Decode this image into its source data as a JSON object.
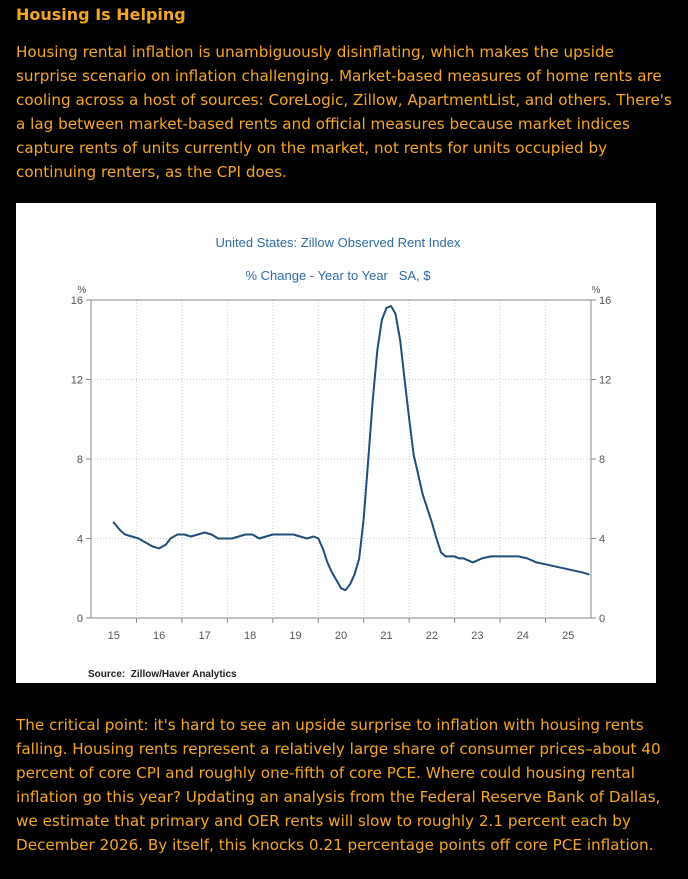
{
  "heading": "Housing Is Helping",
  "paragraph_1": "Housing rental inflation is unambiguously disinflating, which makes the upside surprise scenario on inflation challenging. Market-based measures of home rents are cooling across a host of sources: CoreLogic, Zillow, ApartmentList, and others. There's a lag between market-based rents and official measures because market indices capture rents of units currently on the market, not rents for units occupied by continuing renters, as the CPI does.",
  "paragraph_2": "The critical point: it's hard to see an upside surprise to inflation with housing rents falling. Housing rents represent a relatively large share of consumer prices–about 40 percent of core CPI and roughly one-fifth of core PCE. Where could housing rental inflation go this year? Updating an analysis from the Federal Reserve Bank of Dallas, we estimate that primary and OER rents will slow to roughly 2.1 percent each by December 2026. By itself, this knocks 0.21 percentage points off core PCE inflation.",
  "colors": {
    "text": "#f5a623",
    "line": "#1f4e79",
    "chart_title": "#2e6aa6",
    "axis": "#555555",
    "grid": "#cccccc"
  },
  "chart_data": {
    "type": "line",
    "title": "United States: Zillow Observed Rent Index",
    "subtitle": "% Change - Year to Year   SA, $",
    "ylabel_left": "%",
    "ylabel_right": "%",
    "source": "Source:  Zillow/Haver Analytics",
    "ylim": [
      0,
      16
    ],
    "yticks": [
      0,
      4,
      8,
      12,
      16
    ],
    "xlim": [
      2015.0,
      2026.0
    ],
    "xtick_labels": [
      "15",
      "16",
      "17",
      "18",
      "19",
      "20",
      "21",
      "22",
      "23",
      "24",
      "25"
    ],
    "grid": true,
    "series": [
      {
        "name": "Zillow Observed Rent Index, % YoY",
        "x": [
          2015.5,
          2015.65,
          2015.75,
          2015.9,
          2016.05,
          2016.2,
          2016.35,
          2016.5,
          2016.65,
          2016.75,
          2016.9,
          2017.05,
          2017.2,
          2017.35,
          2017.5,
          2017.65,
          2017.8,
          2017.95,
          2018.1,
          2018.25,
          2018.4,
          2018.55,
          2018.7,
          2018.85,
          2019.0,
          2019.15,
          2019.3,
          2019.45,
          2019.6,
          2019.75,
          2019.9,
          2020.0,
          2020.1,
          2020.2,
          2020.3,
          2020.4,
          2020.5,
          2020.6,
          2020.7,
          2020.8,
          2020.9,
          2021.0,
          2021.1,
          2021.2,
          2021.3,
          2021.4,
          2021.5,
          2021.6,
          2021.7,
          2021.8,
          2021.9,
          2022.0,
          2022.1,
          2022.2,
          2022.3,
          2022.4,
          2022.5,
          2022.6,
          2022.7,
          2022.8,
          2022.9,
          2023.0,
          2023.1,
          2023.2,
          2023.4,
          2023.6,
          2023.8,
          2024.0,
          2024.2,
          2024.4,
          2024.6,
          2024.8,
          2025.0,
          2025.2,
          2025.4,
          2025.6,
          2025.8,
          2025.95
        ],
        "values": [
          4.8,
          4.4,
          4.2,
          4.1,
          4.0,
          3.8,
          3.6,
          3.5,
          3.7,
          4.0,
          4.2,
          4.2,
          4.1,
          4.2,
          4.3,
          4.2,
          4.0,
          4.0,
          4.0,
          4.1,
          4.2,
          4.2,
          4.0,
          4.1,
          4.2,
          4.2,
          4.2,
          4.2,
          4.1,
          4.0,
          4.1,
          4.0,
          3.5,
          2.8,
          2.3,
          1.9,
          1.5,
          1.4,
          1.7,
          2.2,
          3.0,
          5.0,
          8.0,
          11.0,
          13.5,
          15.0,
          15.6,
          15.7,
          15.3,
          14.0,
          12.0,
          10.0,
          8.2,
          7.2,
          6.2,
          5.5,
          4.8,
          4.0,
          3.3,
          3.1,
          3.1,
          3.1,
          3.0,
          3.0,
          2.8,
          3.0,
          3.1,
          3.1,
          3.1,
          3.1,
          3.0,
          2.8,
          2.7,
          2.6,
          2.5,
          2.4,
          2.3,
          2.2
        ]
      }
    ]
  }
}
